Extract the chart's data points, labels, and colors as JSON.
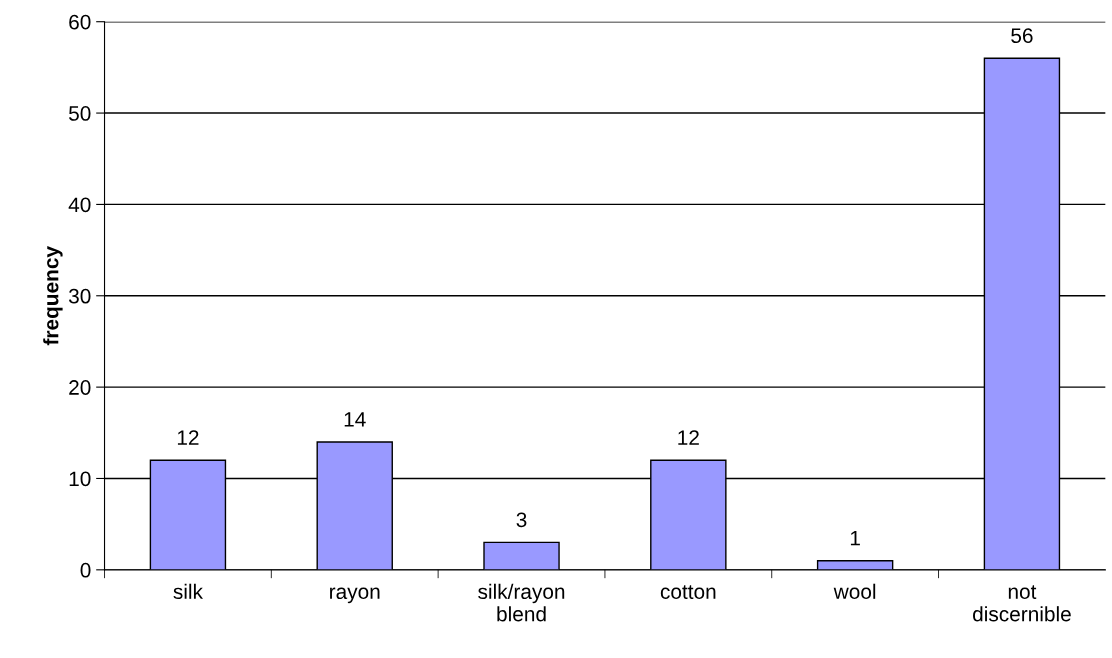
{
  "chart_data": {
    "type": "bar",
    "ylabel": "frequency",
    "categories": [
      "silk",
      "rayon",
      "silk/rayon\nblend",
      "cotton",
      "wool",
      "not\ndiscernible"
    ],
    "values": [
      12,
      14,
      3,
      12,
      1,
      56
    ],
    "color": "#9999ff",
    "ylim": [
      0,
      60
    ],
    "yticks": [
      0,
      10,
      20,
      30,
      40,
      50,
      60
    ],
    "grid": "y",
    "data_labels": true
  }
}
